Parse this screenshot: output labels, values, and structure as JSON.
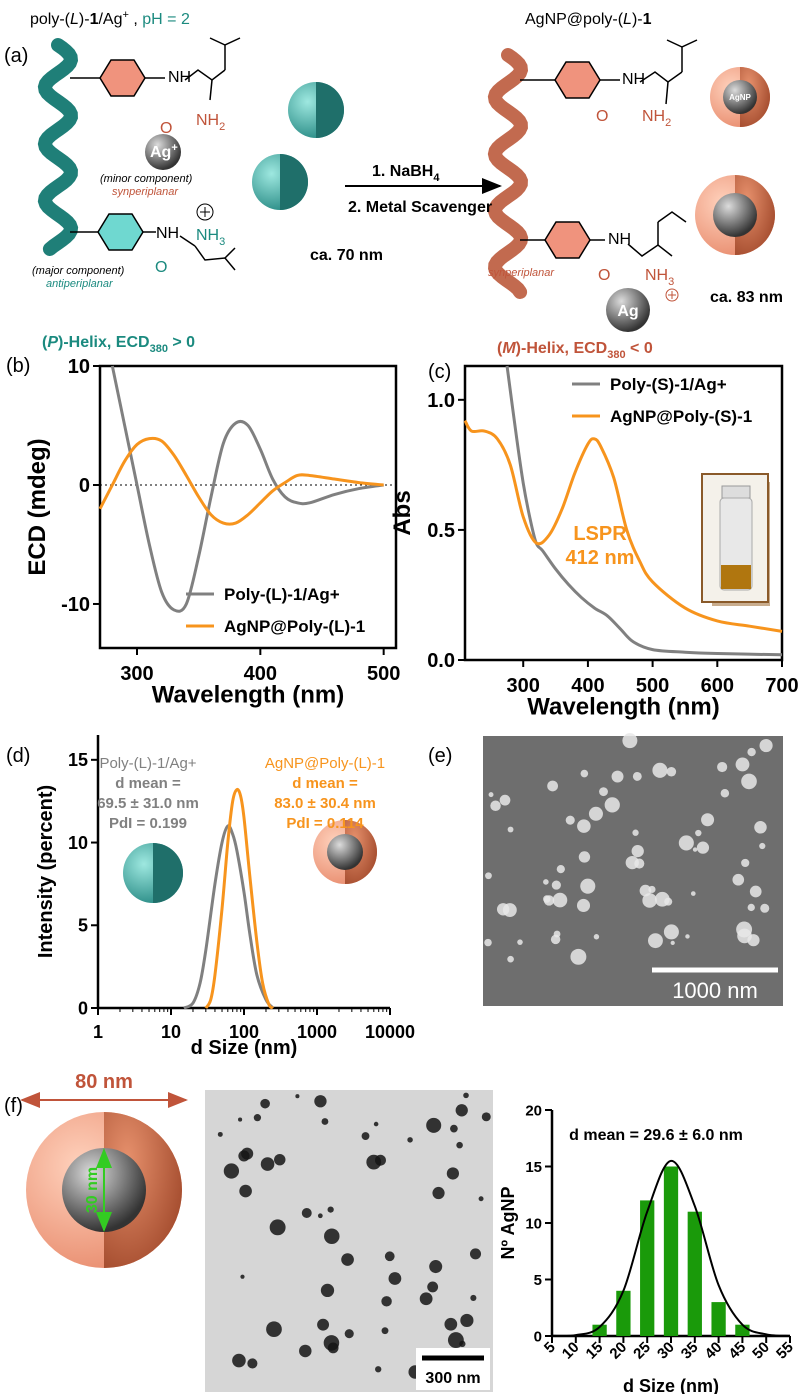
{
  "scheme": {
    "label": "(a)",
    "left_title": [
      "poly-(",
      "L",
      ")-",
      "1",
      "/Ag",
      "+",
      " , ",
      "pH = 2"
    ],
    "right_title": [
      "AgNP@poly-(",
      "L",
      ")-",
      "1"
    ],
    "left_nh_top": "NH",
    "left_nh2": [
      "NH",
      "2"
    ],
    "left_o_top": "O",
    "left_ag": [
      "Ag",
      "+"
    ],
    "minor": "(minor component)",
    "left_syn": "synperiplanar",
    "left_nh_bottom": "NH",
    "left_nh3": [
      "NH",
      "3"
    ],
    "left_o_bottom": "O",
    "major": "(major component)",
    "anti": "antiperiplanar",
    "size_left": "ca. 70 nm",
    "step1": [
      "1. NaBH",
      "4"
    ],
    "step2": "2. Metal Scavenger",
    "right_nh_top": "NH",
    "right_o_top": "O",
    "right_nh2": [
      "NH",
      "2"
    ],
    "agnp": "AgNP",
    "right_nh_bottom": "NH",
    "right_o_bottom": "O",
    "right_nh3": [
      "NH",
      "3"
    ],
    "right_ag": "Ag",
    "right_syn": "synperiplanar",
    "size_right": "ca. 83 nm",
    "left_helix": [
      "(",
      "P",
      ")-Helix, ECD",
      "380",
      " > 0"
    ],
    "right_helix": [
      "(",
      "M",
      ")-Helix, ECD",
      "380",
      " < 0"
    ]
  },
  "sem": {
    "label": "(e)",
    "scale": "1000 nm"
  },
  "tem": {
    "label": "(f)",
    "diameter": "80 nm",
    "core": "30 nm",
    "scale": "300 nm"
  },
  "chart_data": [
    {
      "type": "line",
      "label": "(b)",
      "xlabel": "Wavelength (nm)",
      "ylabel": "ECD (mdeg)",
      "xlim": [
        270,
        510
      ],
      "xticks": [
        300,
        400,
        500
      ],
      "ylim": [
        -13.7,
        10
      ],
      "yticks": [
        -10,
        0,
        10
      ],
      "zero_line": true,
      "legend": "lower right",
      "series": [
        {
          "name": "Poly-(L)-1/Ag+",
          "color": "#808080",
          "x": [
            280,
            290,
            300,
            310,
            320,
            330,
            340,
            350,
            360,
            370,
            380,
            390,
            400,
            410,
            420,
            430,
            440,
            460,
            480,
            500
          ],
          "values": [
            10,
            5,
            0,
            -5,
            -9,
            -10.5,
            -10,
            -6,
            -1,
            3.5,
            5.2,
            5,
            3,
            0.5,
            -1,
            -1.5,
            -1.5,
            -0.8,
            -0.3,
            0
          ]
        },
        {
          "name": "AgNP@Poly-(L)-1",
          "color": "#f7941d",
          "x": [
            270,
            280,
            290,
            300,
            310,
            320,
            330,
            340,
            350,
            360,
            370,
            380,
            390,
            400,
            410,
            420,
            430,
            440,
            460,
            480,
            500
          ],
          "values": [
            -2,
            0,
            2,
            3.4,
            3.9,
            3.7,
            2.5,
            0.8,
            -1,
            -2.5,
            -3.2,
            -3.2,
            -2.5,
            -1.5,
            -0.5,
            0.2,
            0.8,
            0.8,
            0.5,
            0.2,
            0
          ]
        }
      ]
    },
    {
      "type": "line",
      "label": "(c)",
      "xlabel": "Wavelength (nm)",
      "ylabel": "Abs",
      "xlim": [
        210,
        700
      ],
      "xticks": [
        300,
        400,
        500,
        600,
        700
      ],
      "ylim": [
        0,
        1.13
      ],
      "yticks": [
        {
          "value": 0,
          "label": "0.0"
        },
        {
          "value": 0.5,
          "label": "0.5"
        },
        {
          "value": 1,
          "label": "1.0"
        }
      ],
      "legend": "upper right",
      "annotations": [
        "LSPR",
        "412 nm"
      ],
      "series": [
        {
          "name": "Poly-(S)-1/Ag+",
          "color": "#808080",
          "x": [
            275,
            290,
            300,
            310,
            320,
            330,
            350,
            370,
            390,
            410,
            430,
            450,
            470,
            500,
            550,
            600,
            700
          ],
          "values": [
            1.13,
            0.85,
            0.68,
            0.55,
            0.45,
            0.42,
            0.35,
            0.29,
            0.24,
            0.2,
            0.17,
            0.12,
            0.07,
            0.04,
            0.03,
            0.025,
            0.02
          ]
        },
        {
          "name": "AgNP@Poly-(S)-1",
          "color": "#f7941d",
          "x": [
            210,
            220,
            240,
            260,
            280,
            300,
            320,
            340,
            360,
            380,
            400,
            410,
            420,
            440,
            460,
            480,
            500,
            550,
            600,
            650,
            700
          ],
          "values": [
            0.92,
            0.88,
            0.88,
            0.85,
            0.75,
            0.55,
            0.45,
            0.48,
            0.58,
            0.72,
            0.83,
            0.85,
            0.82,
            0.7,
            0.5,
            0.38,
            0.3,
            0.2,
            0.15,
            0.13,
            0.11
          ]
        }
      ]
    },
    {
      "type": "line",
      "label": "(d)",
      "xlabel": "d Size (nm)",
      "ylabel": "Intensity (percent)",
      "xlog": true,
      "xlim": [
        1,
        10000
      ],
      "xticks": [
        1,
        10,
        100,
        1000,
        10000
      ],
      "ylim": [
        0,
        16.5
      ],
      "yticks": [
        0,
        5,
        10,
        15
      ],
      "annotations": [
        [
          "Poly-(L)-1/Ag+",
          "d mean =",
          "69.5 ± 31.0 nm",
          "PdI = 0.199"
        ],
        [
          "AgNP@Poly-(L)-1",
          "d mean =",
          "83.0 ± 30.4 nm",
          "PdI = 0.114"
        ]
      ],
      "series": [
        {
          "color": "#808080",
          "x": [
            15,
            20,
            25,
            30,
            40,
            50,
            60,
            70,
            80,
            100,
            120,
            150,
            200,
            250
          ],
          "values": [
            0,
            0.3,
            1.5,
            3.5,
            7.5,
            10,
            11,
            10.5,
            9.5,
            7,
            4.5,
            2,
            0.5,
            0
          ]
        },
        {
          "color": "#f7941d",
          "x": [
            30,
            35,
            40,
            50,
            60,
            70,
            80,
            90,
            100,
            120,
            150,
            180,
            220,
            250
          ],
          "values": [
            0,
            0.5,
            2,
            6,
            10,
            12.5,
            13.2,
            12.8,
            11.5,
            8,
            4,
            1.5,
            0.2,
            0
          ]
        }
      ]
    },
    {
      "type": "bar",
      "xlabel": "d Size (nm)",
      "ylabel": "Nº AgNP",
      "annotation": "d mean = 29.6 ± 6.0 nm",
      "xlim": [
        5,
        55
      ],
      "xticks": [
        5,
        10,
        15,
        20,
        25,
        30,
        35,
        40,
        45,
        50,
        55
      ],
      "ylim": [
        0,
        20
      ],
      "yticks": [
        0,
        5,
        10,
        15,
        20
      ],
      "color": "#1a9a0a",
      "x": [
        15,
        20,
        25,
        30,
        35,
        40,
        45
      ],
      "values": [
        1,
        4,
        12,
        15,
        11,
        3,
        1
      ],
      "curve": {
        "color": "#000000",
        "x": [
          5,
          10,
          15,
          20,
          25,
          30,
          35,
          40,
          45,
          50,
          55
        ],
        "values": [
          0.02,
          0.08,
          0.8,
          4,
          11,
          15.5,
          11.5,
          4.5,
          1,
          0.15,
          0.01
        ]
      }
    }
  ]
}
